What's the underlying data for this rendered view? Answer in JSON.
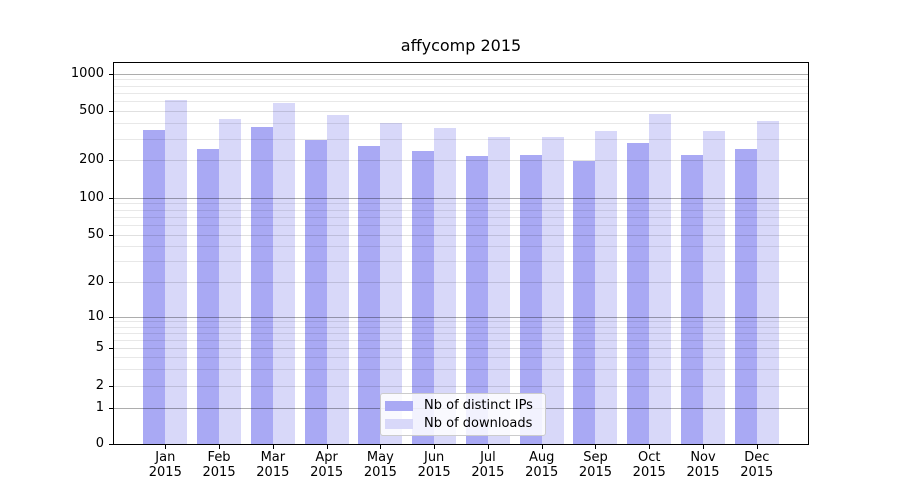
{
  "chart_data": {
    "type": "bar",
    "title": "affycomp 2015",
    "categories": [
      "Jan\n2015",
      "Feb\n2015",
      "Mar\n2015",
      "Apr\n2015",
      "May\n2015",
      "Jun\n2015",
      "Jul\n2015",
      "Aug\n2015",
      "Sep\n2015",
      "Oct\n2015",
      "Nov\n2015",
      "Dec\n2015"
    ],
    "series": [
      {
        "name": "Nb of distinct IPs",
        "color": "#a9a9f4",
        "values": [
          353,
          248,
          375,
          293,
          259,
          239,
          215,
          219,
          196,
          276,
          220,
          245
        ]
      },
      {
        "name": "Nb of downloads",
        "color": "#d8d8f9",
        "values": [
          620,
          430,
          577,
          465,
          404,
          364,
          312,
          308,
          346,
          471,
          346,
          416
        ]
      }
    ],
    "xlabel": "",
    "ylabel": "",
    "y_axis": {
      "scale": "log-like with zero baseline",
      "tick_values": [
        0,
        1,
        2,
        5,
        10,
        20,
        50,
        100,
        200,
        500,
        1000
      ],
      "tick_labels": [
        "0",
        "1",
        "2",
        "5",
        "10",
        "20",
        "50",
        "100",
        "200",
        "500",
        "1000"
      ],
      "minor_gridline_values": [
        3,
        4,
        6,
        7,
        8,
        9,
        30,
        40,
        60,
        70,
        80,
        90,
        300,
        400,
        600,
        700,
        800,
        900
      ],
      "major_gridline_values": [
        1,
        10,
        100,
        1000
      ],
      "ylim": [
        0,
        1000
      ]
    },
    "grid": "horizontal, major and minor, drawn over bars",
    "legend_position": "lower center"
  },
  "colors": {
    "background": "#ffffff",
    "axis": "#000000",
    "legend_border": "#cccccc",
    "bar_distinct_ips": "#a9a9f4",
    "bar_downloads": "#d8d8f9"
  }
}
